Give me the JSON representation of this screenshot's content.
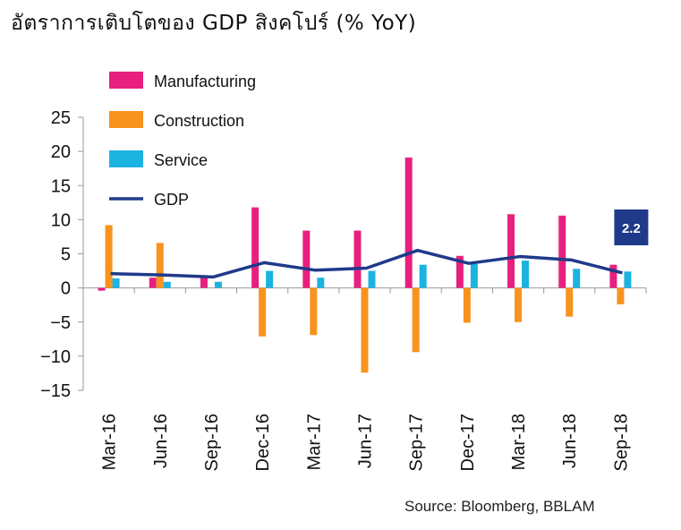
{
  "chart_data": {
    "type": "bar",
    "title": "อัตราการเติบโตของ GDP สิงคโปร์ (% YoY)",
    "categories": [
      "Mar-16",
      "Jun-16",
      "Sep-16",
      "Dec-16",
      "Mar-17",
      "Jun-17",
      "Sep-17",
      "Dec-17",
      "Mar-18",
      "Jun-18",
      "Sep-18"
    ],
    "ylim": [
      -15,
      25
    ],
    "yticks": [
      25,
      20,
      15,
      10,
      5,
      0,
      -5,
      -10,
      -15
    ],
    "grid": false,
    "legend_position": "top-left",
    "series": [
      {
        "name": "Manufacturing",
        "kind": "bar",
        "color": "#e8207d",
        "values": [
          -0.4,
          1.5,
          1.5,
          11.8,
          8.4,
          8.4,
          19.1,
          4.7,
          10.8,
          10.6,
          3.4
        ]
      },
      {
        "name": "Construction",
        "kind": "bar",
        "color": "#f7931e",
        "values": [
          9.2,
          6.6,
          0.0,
          -7.1,
          -6.9,
          -12.4,
          -9.4,
          -5.1,
          -5.0,
          -4.2,
          -2.4
        ]
      },
      {
        "name": "Service",
        "kind": "bar",
        "color": "#1bb3e0",
        "values": [
          1.4,
          0.9,
          0.9,
          2.5,
          1.5,
          2.5,
          3.4,
          3.5,
          4.0,
          2.8,
          2.4
        ]
      },
      {
        "name": "GDP",
        "kind": "line",
        "color": "#1f3a8a",
        "values": [
          2.1,
          1.9,
          1.6,
          3.7,
          2.6,
          2.9,
          5.5,
          3.6,
          4.6,
          4.1,
          2.2
        ]
      }
    ],
    "annotation": {
      "text": "2.2",
      "target_series": "GDP",
      "category": "Sep-18",
      "color": "#1f3a8a"
    },
    "source": "Source: Bloomberg, BBLAM"
  }
}
